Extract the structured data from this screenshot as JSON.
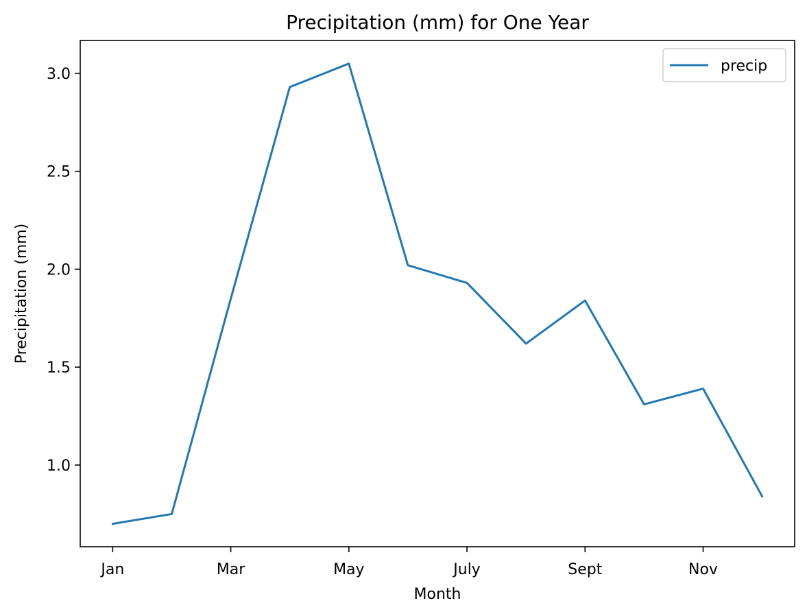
{
  "chart_data": {
    "type": "line",
    "title": "Precipitation (mm) for One Year",
    "xlabel": "Month",
    "ylabel": "Precipitation (mm)",
    "x": [
      0,
      1,
      2,
      3,
      4,
      5,
      6,
      7,
      8,
      9,
      10,
      11
    ],
    "xticks": [
      0,
      2,
      4,
      6,
      8,
      10
    ],
    "xticklabels": [
      "Jan",
      "Mar",
      "May",
      "July",
      "Sept",
      "Nov"
    ],
    "yticks": [
      1.0,
      1.5,
      2.0,
      2.5,
      3.0
    ],
    "yticklabels": [
      "1.0",
      "1.5",
      "2.0",
      "2.5",
      "3.0"
    ],
    "xlim": [
      -0.55,
      11.55
    ],
    "ylim": [
      0.583,
      3.168
    ],
    "grid": false,
    "legend_position": "top-right",
    "series": [
      {
        "name": "precip",
        "color": "#1f77b4",
        "values": [
          0.7,
          0.75,
          1.85,
          2.93,
          3.05,
          2.02,
          1.93,
          1.62,
          1.84,
          1.31,
          1.39,
          0.84
        ]
      }
    ]
  }
}
